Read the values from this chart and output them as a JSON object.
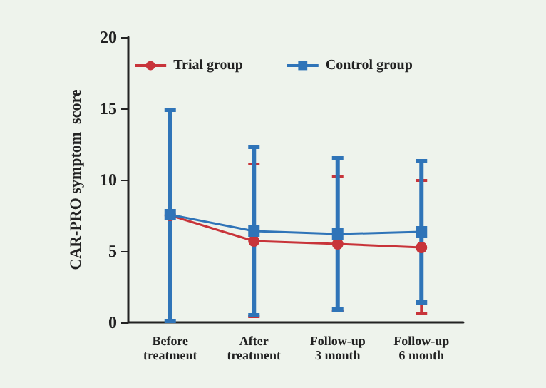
{
  "chart_data": {
    "type": "line",
    "ylabel": "CAR-PRO symptom  score",
    "categories": [
      "Before\ntreatment",
      "After\ntreatment",
      "Follow-up\n3 month",
      "Follow-up\n6 month"
    ],
    "series": [
      {
        "name": "Trial group",
        "color": "#c8343a",
        "marker": "circle",
        "values": [
          7.5,
          5.7,
          5.5,
          5.25
        ],
        "errors": [
          null,
          [
            0.4,
            11.1
          ],
          [
            0.8,
            10.25
          ],
          [
            0.6,
            9.95
          ]
        ]
      },
      {
        "name": "Control group",
        "color": "#2f74b8",
        "marker": "square",
        "values": [
          7.55,
          6.4,
          6.2,
          6.35
        ],
        "errors": [
          [
            0.1,
            14.9
          ],
          [
            0.5,
            12.3
          ],
          [
            0.9,
            11.5
          ],
          [
            1.4,
            11.3
          ]
        ]
      }
    ],
    "ylim": [
      0,
      20
    ],
    "yticks": [
      0,
      5,
      10,
      15,
      20
    ],
    "grid": false,
    "legend": "top",
    "line_style": "solid"
  }
}
